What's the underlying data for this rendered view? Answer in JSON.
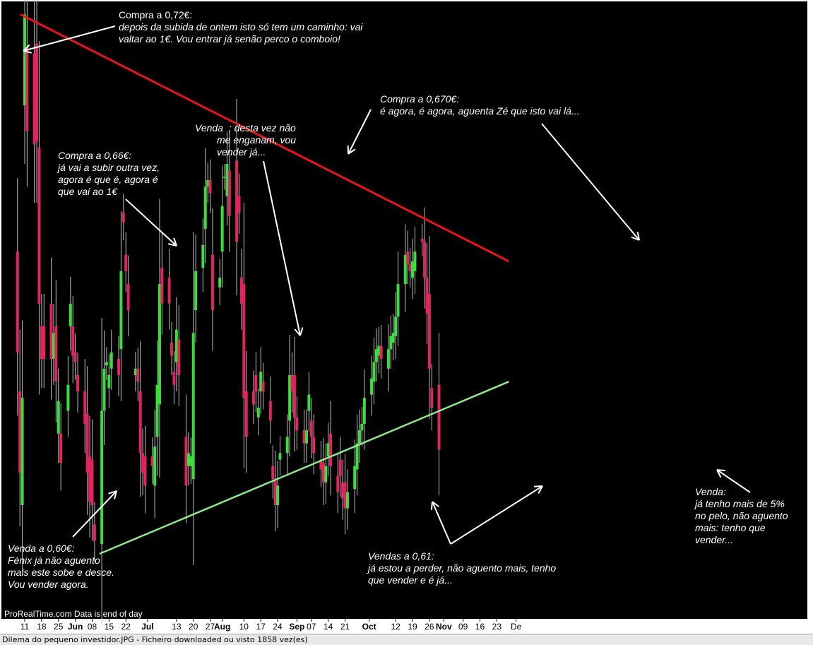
{
  "chart_data": {
    "type": "candlestick",
    "ylim": [
      0.555,
      0.745
    ],
    "x_tick_labels": [
      "11",
      "18",
      "25",
      "Jun",
      "08",
      "15",
      "22",
      "Jul",
      "13",
      "20",
      "27",
      "Aug",
      "10",
      "17",
      "24",
      "Sep",
      "07",
      "14",
      "21",
      "Oct",
      "12",
      "19",
      "26",
      "Nov",
      "09",
      "16",
      "23",
      "De"
    ],
    "month_labels": [
      "Jun",
      "Jul",
      "Aug",
      "Sep",
      "Oct",
      "Nov"
    ],
    "source_label": "ProRealTime.com  Data is end of day",
    "colors": {
      "background": "#000000",
      "up": "#3ddc3d",
      "down": "#e0245e",
      "resistance": "#e8141c",
      "support": "#8ee88a",
      "axis_bg": "#ffffff"
    },
    "resistance_line": {
      "start": [
        "May 11",
        0.741
      ],
      "end": [
        "Nov 28",
        0.665
      ]
    },
    "support_line": {
      "start": [
        "Jun 11",
        0.575
      ],
      "end": [
        "Nov 28",
        0.628
      ]
    },
    "candles": [
      {
        "d": "May 08",
        "o": 0.668,
        "c": 0.637
      },
      {
        "d": "May 09",
        "o": 0.625,
        "c": 0.6
      },
      {
        "d": "May 10",
        "o": 0.59,
        "c": 0.623
      },
      {
        "d": "May 11",
        "o": 0.713,
        "c": 0.741
      },
      {
        "d": "May 12",
        "o": 0.731,
        "c": 0.705
      },
      {
        "d": "May 15",
        "o": 0.729,
        "c": 0.701
      },
      {
        "d": "May 16",
        "o": 0.732,
        "c": 0.702
      },
      {
        "d": "May 17",
        "o": 0.7,
        "c": 0.652
      },
      {
        "d": "May 18",
        "o": 0.645,
        "c": 0.635
      },
      {
        "d": "May 19",
        "o": 0.645,
        "c": 0.635
      },
      {
        "d": "May 22",
        "o": 0.652,
        "c": 0.635
      },
      {
        "d": "May 23",
        "o": 0.635,
        "c": 0.643
      },
      {
        "d": "May 24",
        "o": 0.645,
        "c": 0.628
      },
      {
        "d": "May 25",
        "o": 0.612,
        "c": 0.622
      },
      {
        "d": "May 26",
        "o": 0.612,
        "c": 0.603
      },
      {
        "d": "May 29",
        "o": 0.619,
        "c": 0.627
      },
      {
        "d": "May 30",
        "o": 0.645,
        "c": 0.652
      },
      {
        "d": "May 31",
        "o": 0.645,
        "c": 0.636
      },
      {
        "d": "Jun 01",
        "o": 0.637,
        "c": 0.634
      },
      {
        "d": "Jun 02",
        "o": 0.63,
        "c": 0.625
      },
      {
        "d": "Jun 05",
        "o": 0.625,
        "c": 0.615
      },
      {
        "d": "Jun 06",
        "o": 0.618,
        "c": 0.6
      },
      {
        "d": "Jun 07",
        "o": 0.605,
        "c": 0.591
      },
      {
        "d": "Jun 08",
        "o": 0.604,
        "c": 0.59
      },
      {
        "d": "Jun 09",
        "o": 0.584,
        "c": 0.579
      },
      {
        "d": "Jun 12",
        "o": 0.578,
        "c": 0.619
      },
      {
        "d": "Jun 13",
        "o": 0.619,
        "c": 0.632
      },
      {
        "d": "Jun 14",
        "o": 0.633,
        "c": 0.634
      },
      {
        "d": "Jun 15",
        "o": 0.626,
        "c": 0.63
      },
      {
        "d": "Jun 16",
        "o": 0.632,
        "c": 0.637
      },
      {
        "d": "Jun 19",
        "o": 0.635,
        "c": 0.63
      },
      {
        "d": "Jun 20",
        "o": 0.638,
        "c": 0.662
      },
      {
        "d": "Jun 21",
        "o": 0.68,
        "c": 0.677
      },
      {
        "d": "Jun 22",
        "o": 0.667,
        "c": 0.662
      },
      {
        "d": "Jun 23",
        "o": 0.658,
        "c": 0.65
      },
      {
        "d": "Jun 26",
        "o": 0.63,
        "c": 0.632
      },
      {
        "d": "Jun 27",
        "o": 0.632,
        "c": 0.628
      },
      {
        "d": "Jun 28",
        "o": 0.625,
        "c": 0.606
      },
      {
        "d": "Jun 29",
        "o": 0.606,
        "c": 0.6
      },
      {
        "d": "Jun 30",
        "o": 0.605,
        "c": 0.596
      },
      {
        "d": "Jul 03",
        "o": 0.605,
        "c": 0.602
      },
      {
        "d": "Jul 04",
        "o": 0.596,
        "c": 0.608
      },
      {
        "d": "Jul 05",
        "o": 0.611,
        "c": 0.627
      },
      {
        "d": "Jul 06",
        "o": 0.621,
        "c": 0.658
      },
      {
        "d": "Jul 07",
        "o": 0.663,
        "c": 0.652
      },
      {
        "d": "Jul 10",
        "o": 0.66,
        "c": 0.652
      },
      {
        "d": "Jul 11",
        "o": 0.64,
        "c": 0.636
      },
      {
        "d": "Jul 12",
        "o": 0.631,
        "c": 0.627
      },
      {
        "d": "Jul 13",
        "o": 0.634,
        "c": 0.644
      },
      {
        "d": "Jul 14",
        "o": 0.641,
        "c": 0.63
      },
      {
        "d": "Jul 17",
        "o": 0.611,
        "c": 0.596
      },
      {
        "d": "Jul 18",
        "o": 0.602,
        "c": 0.606
      },
      {
        "d": "Jul 19",
        "o": 0.602,
        "c": 0.605
      },
      {
        "d": "Jul 20",
        "o": 0.598,
        "c": 0.643
      },
      {
        "d": "Jul 21",
        "o": 0.65,
        "c": 0.662
      },
      {
        "d": "Jul 24",
        "o": 0.663,
        "c": 0.67
      },
      {
        "d": "Jul 25",
        "o": 0.675,
        "c": 0.688
      },
      {
        "d": "Jul 26",
        "o": 0.688,
        "c": 0.69
      },
      {
        "d": "Jul 27",
        "o": 0.69,
        "c": 0.686
      },
      {
        "d": "Jul 28",
        "o": 0.667,
        "c": 0.65
      },
      {
        "d": "Jul 31",
        "o": 0.657,
        "c": 0.66
      },
      {
        "d": "Aug 01",
        "o": 0.668,
        "c": 0.682
      },
      {
        "d": "Aug 02",
        "o": 0.691,
        "c": 0.691
      },
      {
        "d": "Aug 03",
        "o": 0.685,
        "c": 0.695
      },
      {
        "d": "Aug 04",
        "o": 0.693,
        "c": 0.679
      },
      {
        "d": "Aug 07",
        "o": 0.696,
        "c": 0.671
      },
      {
        "d": "Aug 08",
        "o": 0.685,
        "c": 0.68
      },
      {
        "d": "Aug 09",
        "o": 0.66,
        "c": 0.652
      },
      {
        "d": "Aug 10",
        "o": 0.658,
        "c": 0.623
      },
      {
        "d": "Aug 11",
        "o": 0.625,
        "c": 0.611
      },
      {
        "d": "Aug 14",
        "o": 0.625,
        "c": 0.621
      },
      {
        "d": "Aug 15",
        "o": 0.63,
        "c": 0.625
      },
      {
        "d": "Aug 16",
        "o": 0.617,
        "c": 0.62
      },
      {
        "d": "Aug 17",
        "o": 0.625,
        "c": 0.631
      },
      {
        "d": "Aug 18",
        "o": 0.628,
        "c": 0.625
      },
      {
        "d": "Aug 21",
        "o": 0.622,
        "c": 0.616
      },
      {
        "d": "Aug 22",
        "o": 0.602,
        "c": 0.598
      },
      {
        "d": "Aug 23",
        "o": 0.598,
        "c": 0.59
      },
      {
        "d": "Aug 24",
        "o": 0.59,
        "c": 0.596
      },
      {
        "d": "Aug 25",
        "o": 0.604,
        "c": 0.606
      },
      {
        "d": "Aug 28",
        "o": 0.606,
        "c": 0.611
      },
      {
        "d": "Aug 29",
        "o": 0.616,
        "c": 0.63
      },
      {
        "d": "Aug 30",
        "o": 0.63,
        "c": 0.625
      },
      {
        "d": "Aug 31",
        "o": 0.63,
        "c": 0.617
      },
      {
        "d": "Sep 01",
        "o": 0.617,
        "c": 0.613
      },
      {
        "d": "Sep 04",
        "o": 0.613,
        "c": 0.609
      },
      {
        "d": "Sep 05",
        "o": 0.609,
        "c": 0.613
      },
      {
        "d": "Sep 06",
        "o": 0.619,
        "c": 0.624
      },
      {
        "d": "Sep 07",
        "o": 0.616,
        "c": 0.611
      },
      {
        "d": "Sep 08",
        "o": 0.611,
        "c": 0.606
      },
      {
        "d": "Sep 11",
        "o": 0.604,
        "c": 0.601
      },
      {
        "d": "Sep 12",
        "o": 0.603,
        "c": 0.597
      },
      {
        "d": "Sep 13",
        "o": 0.597,
        "c": 0.602
      },
      {
        "d": "Sep 14",
        "o": 0.605,
        "c": 0.609
      },
      {
        "d": "Sep 15",
        "o": 0.612,
        "c": 0.602
      },
      {
        "d": "Sep 18",
        "o": 0.599,
        "c": 0.594
      },
      {
        "d": "Sep 19",
        "o": 0.604,
        "c": 0.599
      },
      {
        "d": "Sep 20",
        "o": 0.597,
        "c": 0.592
      },
      {
        "d": "Sep 21",
        "o": 0.597,
        "c": 0.589
      },
      {
        "d": "Sep 22",
        "o": 0.589,
        "c": 0.594
      },
      {
        "d": "Sep 25",
        "o": 0.595,
        "c": 0.602
      },
      {
        "d": "Sep 26",
        "o": 0.601,
        "c": 0.609
      },
      {
        "d": "Sep 27",
        "o": 0.609,
        "c": 0.613
      },
      {
        "d": "Sep 28",
        "o": 0.613,
        "c": 0.615
      },
      {
        "d": "Sep 29",
        "o": 0.615,
        "c": 0.623
      },
      {
        "d": "Oct 02",
        "o": 0.624,
        "c": 0.629
      },
      {
        "d": "Oct 03",
        "o": 0.628,
        "c": 0.634
      },
      {
        "d": "Oct 04",
        "o": 0.634,
        "c": 0.638
      },
      {
        "d": "Oct 05",
        "o": 0.636,
        "c": 0.639
      },
      {
        "d": "Oct 06",
        "o": 0.639,
        "c": 0.635
      },
      {
        "d": "Oct 09",
        "o": 0.632,
        "c": 0.638
      },
      {
        "d": "Oct 10",
        "o": 0.638,
        "c": 0.642
      },
      {
        "d": "Oct 11",
        "o": 0.64,
        "c": 0.643
      },
      {
        "d": "Oct 12",
        "o": 0.642,
        "c": 0.648
      },
      {
        "d": "Oct 13",
        "o": 0.648,
        "c": 0.658
      },
      {
        "d": "Oct 16",
        "o": 0.658,
        "c": 0.667
      },
      {
        "d": "Oct 17",
        "o": 0.668,
        "c": 0.664
      },
      {
        "d": "Oct 18",
        "o": 0.664,
        "c": 0.662
      },
      {
        "d": "Oct 19",
        "o": 0.66,
        "c": 0.665
      },
      {
        "d": "Oct 20",
        "o": 0.662,
        "c": 0.668
      },
      {
        "d": "Oct 23",
        "o": 0.672,
        "c": 0.671
      },
      {
        "d": "Oct 24",
        "o": 0.671,
        "c": 0.66
      },
      {
        "d": "Oct 25",
        "o": 0.66,
        "c": 0.649
      },
      {
        "d": "Oct 26",
        "o": 0.655,
        "c": 0.632
      },
      {
        "d": "Oct 27",
        "o": 0.626,
        "c": 0.62
      },
      {
        "d": "Oct 30",
        "o": 0.627,
        "c": 0.607
      }
    ]
  },
  "annotations": [
    {
      "id": "compra-072",
      "title": "Compra a 0,72€:",
      "body": [
        "depois da subida de ontem isto só tem um caminho: vai",
        "valtar ao 1€. Vou entrar já senão perco o comboio!"
      ]
    },
    {
      "id": "compra-066",
      "title": "Compra a 0,66€:",
      "body": [
        "já vai a subir outra vez,",
        "agora é que é, agora é",
        "que vai ao 1€"
      ]
    },
    {
      "id": "venda-desta-vez",
      "title": "Venda",
      "body": [
        ": desta vez não",
        "me enganam, vou",
        "vender já..."
      ]
    },
    {
      "id": "compra-0670",
      "title": "Compra a 0,670€:",
      "body": [
        "é agora, é agora, aguenta Zé que isto vai lá..."
      ]
    },
    {
      "id": "venda-060",
      "title": "Venda a 0,60€:",
      "body": [
        "Fénix já não aguento",
        "mais este sobe e desce.",
        "Vou vender agora."
      ]
    },
    {
      "id": "vendas-061",
      "title": "Vendas a 0,61:",
      "body": [
        "já estou a perder, não aguento mais, tenho",
        "que vender e é já..."
      ]
    },
    {
      "id": "venda-5pct",
      "title": "Venda:",
      "body": [
        "já tenho mais de 5%",
        "no pelo, não aguento",
        "mais: tenho que",
        "vender..."
      ]
    }
  ],
  "status_bar": "Dilema do pequeno investidor.JPG - Ficheiro downloaded ou visto 1858 vez(es)"
}
